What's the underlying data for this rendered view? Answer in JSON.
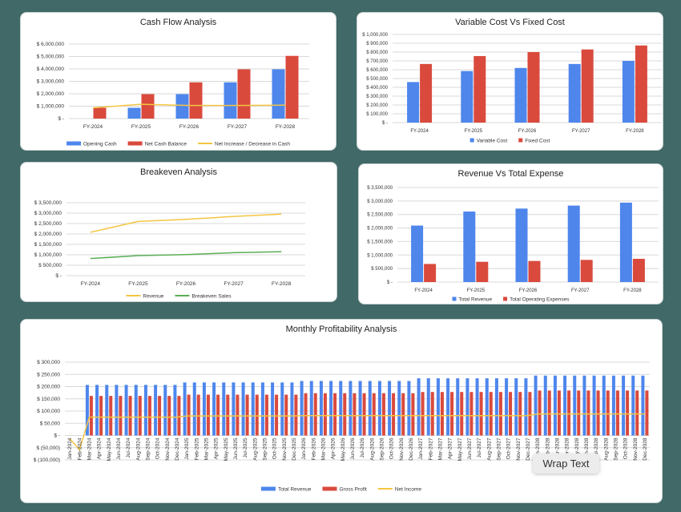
{
  "tooltip": "Wrap Text",
  "colors": {
    "blue": "#4e86ec",
    "red": "#d94a3d",
    "yellow": "#f4c542",
    "green": "#5aae55",
    "background": "#416967"
  },
  "chart_data": [
    {
      "id": "c1",
      "type": "bar",
      "title": "Cash Flow Analysis",
      "categories": [
        "FY-2024",
        "FY-2025",
        "FY-2026",
        "FY-2027",
        "FY-2028"
      ],
      "ylim": [
        0,
        6000000
      ],
      "ystep": 1000000,
      "grid": true,
      "legend": "bottom",
      "series": [
        {
          "name": "Opening Cash",
          "type": "bar",
          "color": "#4e86ec",
          "values": [
            0,
            870000,
            1970000,
            2920000,
            3970000
          ]
        },
        {
          "name": "Net Cash Balance",
          "type": "bar",
          "color": "#d94a3d",
          "values": [
            870000,
            1970000,
            2920000,
            3970000,
            5050000
          ]
        },
        {
          "name": "Net Increase / Decrease in Cash",
          "type": "line",
          "color": "#f4c542",
          "values": [
            870000,
            1150000,
            1060000,
            1060000,
            1080000
          ]
        }
      ]
    },
    {
      "id": "c2",
      "type": "bar",
      "title": "Variable Cost Vs Fixed Cost",
      "categories": [
        "FY-2024",
        "FY-2025",
        "FY-2026",
        "FY-2027",
        "FY-2028"
      ],
      "ylim": [
        0,
        1000000
      ],
      "ystep": 100000,
      "grid": true,
      "legend": "bottom",
      "series": [
        {
          "name": "Variable Cost",
          "type": "bar",
          "color": "#4e86ec",
          "values": [
            460000,
            585000,
            620000,
            665000,
            700000
          ]
        },
        {
          "name": "Fixed Cost",
          "type": "bar",
          "color": "#d94a3d",
          "values": [
            665000,
            755000,
            800000,
            830000,
            875000
          ]
        }
      ]
    },
    {
      "id": "c3",
      "type": "line",
      "title": "Breakeven Analysis",
      "categories": [
        "FY-2024",
        "FY-2025",
        "FY-2026",
        "FY-2027",
        "FY-2028"
      ],
      "ylim": [
        0,
        3500000
      ],
      "ystep": 500000,
      "grid": true,
      "legend": "bottom",
      "series": [
        {
          "name": "Revenue",
          "type": "line",
          "color": "#f4c542",
          "values": [
            2080000,
            2600000,
            2700000,
            2840000,
            2950000
          ]
        },
        {
          "name": "Breakeven Sales",
          "type": "line",
          "color": "#5aae55",
          "values": [
            820000,
            960000,
            1010000,
            1100000,
            1150000
          ]
        }
      ]
    },
    {
      "id": "c4",
      "type": "bar",
      "title": "Revenue Vs Total Expense",
      "categories": [
        "FY-2024",
        "FY-2025",
        "FY-2026",
        "FY-2027",
        "FY-2028"
      ],
      "ylim": [
        0,
        3500000
      ],
      "ystep": 500000,
      "grid": true,
      "legend": "bottom",
      "series": [
        {
          "name": "Total Revenue",
          "type": "bar",
          "color": "#4e86ec",
          "values": [
            2090000,
            2610000,
            2720000,
            2830000,
            2940000
          ]
        },
        {
          "name": "Total Operating Expenses",
          "type": "bar",
          "color": "#d94a3d",
          "values": [
            670000,
            750000,
            780000,
            820000,
            860000
          ]
        }
      ]
    },
    {
      "id": "c5",
      "type": "bar",
      "title": "Monthly Profitability Analysis",
      "categories": [
        "Jan-2024",
        "Feb-2024",
        "Mar-2024",
        "Apr-2024",
        "May-2024",
        "Jun-2024",
        "Jul-2024",
        "Aug-2024",
        "Sep-2024",
        "Oct-2024",
        "Nov-2024",
        "Dec-2024",
        "Jan-2025",
        "Feb-2025",
        "Mar-2025",
        "Apr-2025",
        "May-2025",
        "Jun-2025",
        "Jul-2025",
        "Aug-2025",
        "Sep-2025",
        "Oct-2025",
        "Nov-2025",
        "Dec-2025",
        "Jan-2026",
        "Feb-2026",
        "Mar-2026",
        "Apr-2026",
        "May-2026",
        "Jun-2026",
        "Jul-2026",
        "Aug-2026",
        "Sep-2026",
        "Oct-2026",
        "Nov-2026",
        "Dec-2026",
        "Jan-2027",
        "Feb-2027",
        "Mar-2027",
        "Apr-2027",
        "May-2027",
        "Jun-2027",
        "Jul-2027",
        "Aug-2027",
        "Sep-2027",
        "Oct-2027",
        "Nov-2027",
        "Dec-2027",
        "Jan-2028",
        "Feb-2028",
        "Mar-2028",
        "Apr-2028",
        "May-2028",
        "Jun-2028",
        "Jul-2028",
        "Aug-2028",
        "Sep-2028",
        "Oct-2028",
        "Nov-2028",
        "Dec-2028"
      ],
      "ylim": [
        -100000,
        300000
      ],
      "ystep": 50000,
      "grid": true,
      "legend": "bottom",
      "series": [
        {
          "name": "Total Revenue",
          "type": "bar",
          "color": "#4e86ec",
          "values": [
            0,
            0,
            207000,
            207000,
            207000,
            207000,
            207000,
            207000,
            207000,
            207000,
            207000,
            207000,
            217000,
            217000,
            217000,
            217000,
            217000,
            217000,
            217000,
            217000,
            217000,
            217000,
            217000,
            217000,
            223000,
            223000,
            223000,
            223000,
            223000,
            223000,
            223000,
            223000,
            223000,
            223000,
            223000,
            223000,
            234000,
            234000,
            234000,
            234000,
            234000,
            234000,
            234000,
            234000,
            234000,
            234000,
            234000,
            234000,
            245000,
            245000,
            245000,
            245000,
            245000,
            245000,
            245000,
            245000,
            245000,
            245000,
            245000,
            245000
          ]
        },
        {
          "name": "Gross Profit",
          "type": "bar",
          "color": "#d94a3d",
          "values": [
            0,
            0,
            162000,
            162000,
            162000,
            162000,
            162000,
            162000,
            162000,
            162000,
            162000,
            162000,
            167000,
            167000,
            167000,
            167000,
            167000,
            167000,
            167000,
            167000,
            167000,
            167000,
            167000,
            167000,
            173000,
            173000,
            173000,
            173000,
            173000,
            173000,
            173000,
            173000,
            173000,
            173000,
            173000,
            173000,
            178000,
            178000,
            178000,
            178000,
            178000,
            178000,
            178000,
            178000,
            178000,
            178000,
            178000,
            178000,
            184000,
            184000,
            184000,
            184000,
            184000,
            184000,
            184000,
            184000,
            184000,
            184000,
            184000,
            184000
          ]
        },
        {
          "name": "Net Income",
          "type": "line",
          "color": "#f4c542",
          "values": [
            -13000,
            -58000,
            75000,
            75000,
            75000,
            75000,
            75000,
            75000,
            75000,
            75000,
            75000,
            75000,
            80000,
            80000,
            80000,
            80000,
            80000,
            80000,
            80000,
            80000,
            80000,
            80000,
            80000,
            80000,
            81000,
            81000,
            81000,
            81000,
            81000,
            81000,
            81000,
            81000,
            81000,
            81000,
            81000,
            81000,
            81000,
            81000,
            81000,
            81000,
            81000,
            81000,
            81000,
            81000,
            81000,
            81000,
            81000,
            81000,
            88000,
            88000,
            88000,
            88000,
            88000,
            88000,
            88000,
            88000,
            88000,
            88000,
            88000,
            88000
          ]
        }
      ]
    }
  ]
}
